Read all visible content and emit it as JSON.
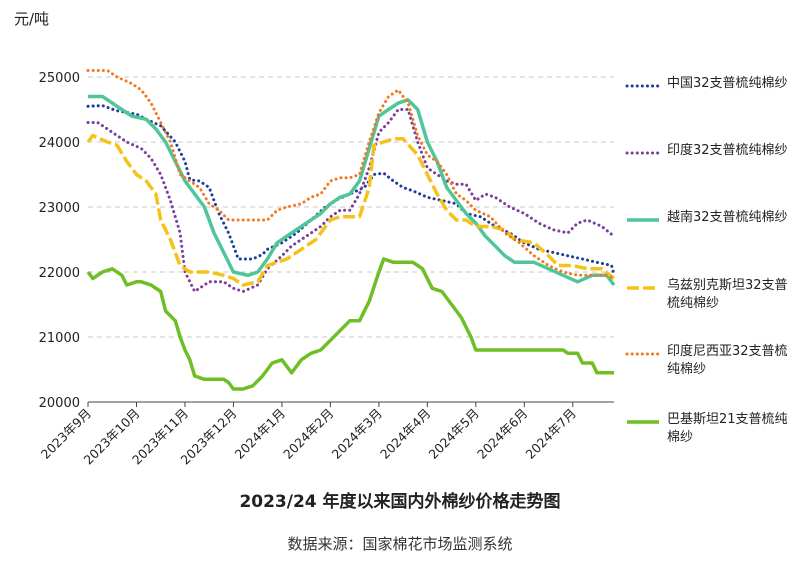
{
  "chart_data": {
    "type": "line",
    "title": "2023/24 年度以来国内外棉纱价格走势图",
    "source": "数据来源：国家棉花市场监测系统",
    "ylabel": "元/吨",
    "ylim": [
      20000,
      25000
    ],
    "yticks": [
      "20000",
      "21000",
      "22000",
      "23000",
      "24000",
      "25000"
    ],
    "xticks": [
      "2023年9月",
      "2023年10月",
      "2023年11月",
      "2023年12月",
      "2024年1月",
      "2024年2月",
      "2024年3月",
      "2024年4月",
      "2024年5月",
      "2024年6月",
      "2024年7月"
    ],
    "grid": true,
    "legend_position": "right",
    "series": [
      {
        "name": "中国32支普梳纯棉纱",
        "color": "#1f3e9c",
        "style": "dotted",
        "points": [
          [
            0,
            24550
          ],
          [
            0.3,
            24560
          ],
          [
            0.6,
            24480
          ],
          [
            1,
            24430
          ],
          [
            1.2,
            24350
          ],
          [
            1.5,
            24250
          ],
          [
            1.8,
            24000
          ],
          [
            2.0,
            23700
          ],
          [
            2.1,
            23420
          ],
          [
            2.3,
            23400
          ],
          [
            2.5,
            23300
          ],
          [
            2.7,
            22900
          ],
          [
            2.9,
            22600
          ],
          [
            3.1,
            22200
          ],
          [
            3.4,
            22200
          ],
          [
            3.6,
            22270
          ],
          [
            3.7,
            22350
          ],
          [
            4.0,
            22450
          ],
          [
            4.3,
            22600
          ],
          [
            4.6,
            22800
          ],
          [
            4.9,
            23000
          ],
          [
            5.1,
            23100
          ],
          [
            5.4,
            23200
          ],
          [
            5.7,
            23300
          ],
          [
            5.9,
            23500
          ],
          [
            6.1,
            23520
          ],
          [
            6.3,
            23400
          ],
          [
            6.5,
            23300
          ],
          [
            6.7,
            23250
          ],
          [
            7.0,
            23150
          ],
          [
            7.3,
            23100
          ],
          [
            7.6,
            23050
          ],
          [
            7.8,
            22900
          ],
          [
            8.1,
            22850
          ],
          [
            8.4,
            22700
          ],
          [
            8.7,
            22600
          ],
          [
            9.0,
            22450
          ],
          [
            9.3,
            22350
          ],
          [
            9.6,
            22300
          ],
          [
            9.9,
            22250
          ],
          [
            10.2,
            22200
          ],
          [
            10.5,
            22150
          ],
          [
            10.8,
            22100
          ],
          [
            10.85,
            21960
          ]
        ]
      },
      {
        "name": "印度32支普梳纯棉纱",
        "color": "#7b3f9e",
        "style": "dotted",
        "points": [
          [
            0,
            24300
          ],
          [
            0.2,
            24300
          ],
          [
            0.5,
            24150
          ],
          [
            0.8,
            24000
          ],
          [
            1.1,
            23900
          ],
          [
            1.3,
            23750
          ],
          [
            1.5,
            23500
          ],
          [
            1.7,
            23100
          ],
          [
            1.9,
            22600
          ],
          [
            2.0,
            22000
          ],
          [
            2.2,
            21700
          ],
          [
            2.5,
            21850
          ],
          [
            2.8,
            21850
          ],
          [
            3.0,
            21750
          ],
          [
            3.2,
            21700
          ],
          [
            3.5,
            21800
          ],
          [
            3.7,
            22050
          ],
          [
            4.0,
            22250
          ],
          [
            4.2,
            22400
          ],
          [
            4.5,
            22550
          ],
          [
            4.8,
            22700
          ],
          [
            5.0,
            22850
          ],
          [
            5.2,
            22950
          ],
          [
            5.4,
            22950
          ],
          [
            5.6,
            23200
          ],
          [
            5.8,
            23600
          ],
          [
            6.0,
            24150
          ],
          [
            6.2,
            24300
          ],
          [
            6.4,
            24500
          ],
          [
            6.6,
            24500
          ],
          [
            6.8,
            24000
          ],
          [
            7.0,
            23600
          ],
          [
            7.2,
            23500
          ],
          [
            7.4,
            23400
          ],
          [
            7.6,
            23350
          ],
          [
            7.8,
            23350
          ],
          [
            8.0,
            23100
          ],
          [
            8.2,
            23200
          ],
          [
            8.4,
            23150
          ],
          [
            8.7,
            23000
          ],
          [
            9.0,
            22900
          ],
          [
            9.3,
            22750
          ],
          [
            9.6,
            22650
          ],
          [
            9.9,
            22600
          ],
          [
            10.1,
            22750
          ],
          [
            10.3,
            22800
          ],
          [
            10.6,
            22700
          ],
          [
            10.85,
            22550
          ]
        ]
      },
      {
        "name": "越南32支普梳纯棉纱",
        "color": "#4fc59a",
        "style": "solid",
        "points": [
          [
            0,
            24700
          ],
          [
            0.3,
            24700
          ],
          [
            0.6,
            24550
          ],
          [
            0.9,
            24400
          ],
          [
            1.2,
            24350
          ],
          [
            1.4,
            24200
          ],
          [
            1.6,
            24000
          ],
          [
            1.8,
            23700
          ],
          [
            2.0,
            23400
          ],
          [
            2.2,
            23200
          ],
          [
            2.4,
            23000
          ],
          [
            2.6,
            22600
          ],
          [
            2.8,
            22300
          ],
          [
            3.0,
            22000
          ],
          [
            3.3,
            21950
          ],
          [
            3.5,
            22000
          ],
          [
            3.7,
            22200
          ],
          [
            3.9,
            22450
          ],
          [
            4.2,
            22600
          ],
          [
            4.5,
            22750
          ],
          [
            4.8,
            22900
          ],
          [
            5.0,
            23050
          ],
          [
            5.2,
            23150
          ],
          [
            5.4,
            23200
          ],
          [
            5.6,
            23400
          ],
          [
            5.8,
            23900
          ],
          [
            6.0,
            24400
          ],
          [
            6.2,
            24500
          ],
          [
            6.4,
            24600
          ],
          [
            6.6,
            24650
          ],
          [
            6.8,
            24500
          ],
          [
            7.0,
            24000
          ],
          [
            7.2,
            23700
          ],
          [
            7.4,
            23300
          ],
          [
            7.6,
            23100
          ],
          [
            7.8,
            22900
          ],
          [
            8.0,
            22750
          ],
          [
            8.2,
            22550
          ],
          [
            8.4,
            22400
          ],
          [
            8.6,
            22250
          ],
          [
            8.8,
            22150
          ],
          [
            9.2,
            22150
          ],
          [
            9.5,
            22050
          ],
          [
            9.8,
            21950
          ],
          [
            10.1,
            21850
          ],
          [
            10.4,
            21950
          ],
          [
            10.7,
            21950
          ],
          [
            10.85,
            21800
          ]
        ]
      },
      {
        "name": "乌兹别克斯坦32支普梳纯棉纱",
        "color": "#f5c21b",
        "style": "dashed",
        "points": [
          [
            0,
            24000
          ],
          [
            0.1,
            24100
          ],
          [
            0.4,
            24000
          ],
          [
            0.6,
            23950
          ],
          [
            0.8,
            23700
          ],
          [
            1.0,
            23500
          ],
          [
            1.2,
            23400
          ],
          [
            1.4,
            23200
          ],
          [
            1.5,
            22800
          ],
          [
            1.7,
            22500
          ],
          [
            1.9,
            22100
          ],
          [
            2.1,
            22000
          ],
          [
            2.5,
            22000
          ],
          [
            2.8,
            21950
          ],
          [
            3.0,
            21900
          ],
          [
            3.2,
            21800
          ],
          [
            3.5,
            21850
          ],
          [
            3.7,
            22100
          ],
          [
            3.9,
            22150
          ],
          [
            4.1,
            22200
          ],
          [
            4.4,
            22350
          ],
          [
            4.7,
            22500
          ],
          [
            5.0,
            22800
          ],
          [
            5.2,
            22850
          ],
          [
            5.6,
            22850
          ],
          [
            5.8,
            23300
          ],
          [
            5.9,
            23950
          ],
          [
            6.1,
            24000
          ],
          [
            6.3,
            24050
          ],
          [
            6.5,
            24050
          ],
          [
            6.8,
            23800
          ],
          [
            7.0,
            23500
          ],
          [
            7.2,
            23200
          ],
          [
            7.4,
            22950
          ],
          [
            7.6,
            22800
          ],
          [
            7.8,
            22800
          ],
          [
            8.0,
            22700
          ],
          [
            8.3,
            22700
          ],
          [
            8.6,
            22650
          ],
          [
            8.8,
            22500
          ],
          [
            9.2,
            22450
          ],
          [
            9.5,
            22250
          ],
          [
            9.7,
            22100
          ],
          [
            10.0,
            22100
          ],
          [
            10.3,
            22050
          ],
          [
            10.6,
            22050
          ],
          [
            10.85,
            21900
          ]
        ]
      },
      {
        "name": "印度尼西亚32支普梳纯棉纱",
        "color": "#ee7a22",
        "style": "dotted",
        "points": [
          [
            0,
            25100
          ],
          [
            0.4,
            25100
          ],
          [
            0.6,
            25000
          ],
          [
            0.9,
            24900
          ],
          [
            1.1,
            24800
          ],
          [
            1.3,
            24600
          ],
          [
            1.5,
            24300
          ],
          [
            1.7,
            24000
          ],
          [
            1.9,
            23500
          ],
          [
            2.1,
            23400
          ],
          [
            2.3,
            23300
          ],
          [
            2.5,
            23050
          ],
          [
            2.7,
            22950
          ],
          [
            2.9,
            22800
          ],
          [
            3.2,
            22800
          ],
          [
            3.5,
            22800
          ],
          [
            3.7,
            22800
          ],
          [
            3.9,
            22950
          ],
          [
            4.1,
            23000
          ],
          [
            4.4,
            23050
          ],
          [
            4.6,
            23150
          ],
          [
            4.8,
            23200
          ],
          [
            5.0,
            23400
          ],
          [
            5.2,
            23450
          ],
          [
            5.4,
            23450
          ],
          [
            5.6,
            23500
          ],
          [
            5.8,
            24000
          ],
          [
            6.0,
            24450
          ],
          [
            6.2,
            24700
          ],
          [
            6.4,
            24800
          ],
          [
            6.6,
            24600
          ],
          [
            6.8,
            24100
          ],
          [
            7.0,
            23800
          ],
          [
            7.2,
            23700
          ],
          [
            7.4,
            23500
          ],
          [
            7.6,
            23200
          ],
          [
            7.8,
            23100
          ],
          [
            8.0,
            22950
          ],
          [
            8.3,
            22850
          ],
          [
            8.6,
            22600
          ],
          [
            8.9,
            22450
          ],
          [
            9.2,
            22250
          ],
          [
            9.5,
            22100
          ],
          [
            9.8,
            22000
          ],
          [
            10.1,
            21950
          ],
          [
            10.4,
            21950
          ],
          [
            10.7,
            21950
          ],
          [
            10.85,
            21900
          ]
        ]
      },
      {
        "name": "巴基斯坦21支普梳纯棉纱",
        "color": "#6dbf25",
        "style": "solid",
        "points": [
          [
            0,
            22000
          ],
          [
            0.1,
            21900
          ],
          [
            0.3,
            22000
          ],
          [
            0.5,
            22050
          ],
          [
            0.7,
            21950
          ],
          [
            0.8,
            21800
          ],
          [
            1.0,
            21850
          ],
          [
            1.1,
            21850
          ],
          [
            1.3,
            21800
          ],
          [
            1.5,
            21700
          ],
          [
            1.6,
            21400
          ],
          [
            1.8,
            21250
          ],
          [
            1.9,
            21000
          ],
          [
            2.0,
            20800
          ],
          [
            2.1,
            20650
          ],
          [
            2.2,
            20400
          ],
          [
            2.4,
            20350
          ],
          [
            2.6,
            20350
          ],
          [
            2.8,
            20350
          ],
          [
            2.9,
            20300
          ],
          [
            3.0,
            20200
          ],
          [
            3.2,
            20200
          ],
          [
            3.4,
            20250
          ],
          [
            3.6,
            20400
          ],
          [
            3.8,
            20600
          ],
          [
            4.0,
            20650
          ],
          [
            4.2,
            20450
          ],
          [
            4.4,
            20650
          ],
          [
            4.6,
            20750
          ],
          [
            4.8,
            20800
          ],
          [
            5.0,
            20950
          ],
          [
            5.2,
            21100
          ],
          [
            5.4,
            21250
          ],
          [
            5.6,
            21250
          ],
          [
            5.8,
            21550
          ],
          [
            6.0,
            22000
          ],
          [
            6.1,
            22200
          ],
          [
            6.3,
            22150
          ],
          [
            6.5,
            22150
          ],
          [
            6.7,
            22150
          ],
          [
            6.8,
            22100
          ],
          [
            6.9,
            22050
          ],
          [
            7.1,
            21750
          ],
          [
            7.3,
            21700
          ],
          [
            7.5,
            21500
          ],
          [
            7.7,
            21300
          ],
          [
            7.9,
            21000
          ],
          [
            8.0,
            20800
          ],
          [
            8.2,
            20800
          ],
          [
            8.6,
            20800
          ],
          [
            9.0,
            20800
          ],
          [
            9.4,
            20800
          ],
          [
            9.8,
            20800
          ],
          [
            9.9,
            20750
          ],
          [
            10.1,
            20750
          ],
          [
            10.2,
            20600
          ],
          [
            10.4,
            20600
          ],
          [
            10.5,
            20450
          ],
          [
            10.85,
            20450
          ]
        ]
      }
    ]
  }
}
